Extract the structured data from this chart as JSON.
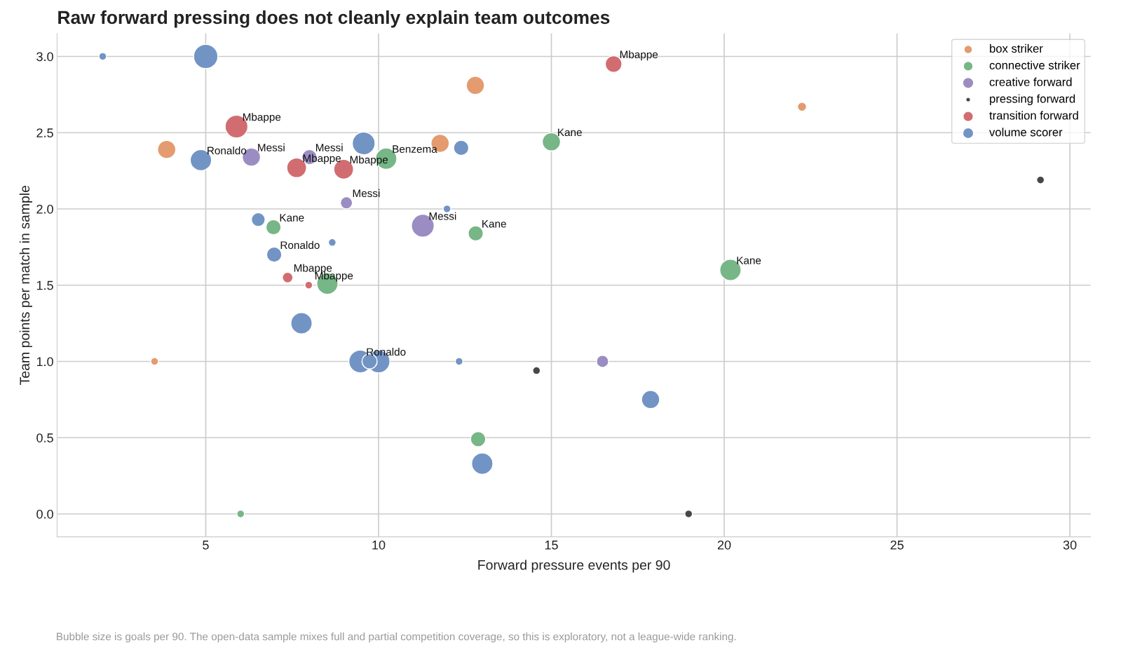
{
  "chart_data": {
    "type": "bubble",
    "title": "Raw forward pressing does not cleanly explain team outcomes",
    "xlabel": "Forward pressure events per 90",
    "ylabel": "Team points per match in sample",
    "xlim": [
      0.7,
      30.6
    ],
    "ylim": [
      -0.15,
      3.15
    ],
    "xticks": [
      5,
      10,
      15,
      20,
      25,
      30
    ],
    "yticks": [
      {
        "value": 0,
        "label": "0.0"
      },
      {
        "value": 0.5,
        "label": "0.5"
      },
      {
        "value": 1,
        "label": "1.0"
      },
      {
        "value": 1.5,
        "label": "1.5"
      },
      {
        "value": 2,
        "label": "2.0"
      },
      {
        "value": 2.5,
        "label": "2.5"
      },
      {
        "value": 3,
        "label": "3.0"
      }
    ],
    "grid": true,
    "legend": "top right",
    "series": [
      {
        "name": "box striker",
        "color": "#e39b6f",
        "x": [
          3.87,
          3.52,
          12.8,
          11.78,
          22.25
        ],
        "values": [
          2.39,
          1.0,
          2.81,
          2.43,
          2.67
        ],
        "sizes": [
          0.56,
          0.1,
          0.56,
          0.56,
          0.14
        ]
      },
      {
        "name": "connective striker",
        "color": "#77b686",
        "x": [
          10.22,
          15.0,
          6.96,
          12.81,
          20.18,
          8.52,
          12.88,
          6.01
        ],
        "values": [
          2.33,
          2.44,
          1.88,
          1.84,
          1.6,
          1.51,
          0.49,
          0.0
        ],
        "sizes": [
          0.77,
          0.56,
          0.39,
          0.39,
          0.77,
          0.77,
          0.39,
          0.1
        ]
      },
      {
        "name": "creative forward",
        "color": "#9b8dc3",
        "x": [
          6.32,
          8.0,
          9.07,
          11.28,
          16.48
        ],
        "values": [
          2.34,
          2.34,
          2.04,
          1.89,
          1.0
        ],
        "sizes": [
          0.56,
          0.39,
          0.25,
          0.88,
          0.25
        ]
      },
      {
        "name": "pressing forward",
        "color": "#474747",
        "x": [
          14.57,
          18.97,
          29.15
        ],
        "values": [
          0.94,
          0.0,
          2.19
        ],
        "sizes": [
          0.1,
          0.1,
          0.1
        ]
      },
      {
        "name": "transition forward",
        "color": "#d16d71",
        "x": [
          5.89,
          16.8,
          7.63,
          8.99,
          7.37,
          7.98
        ],
        "values": [
          2.54,
          2.95,
          2.27,
          2.26,
          1.55,
          1.5
        ],
        "sizes": [
          0.88,
          0.47,
          0.66,
          0.66,
          0.19,
          0.1
        ]
      },
      {
        "name": "volume scorer",
        "color": "#7194c4",
        "x": [
          2.02,
          5.0,
          4.86,
          9.57,
          12.39,
          11.98,
          6.52,
          8.66,
          6.98,
          7.77,
          9.47,
          10.0,
          9.74,
          12.33,
          17.87,
          13.0
        ],
        "values": [
          3.0,
          3.0,
          2.32,
          2.43,
          2.4,
          2.0,
          1.93,
          1.78,
          1.7,
          1.25,
          1.0,
          1.0,
          1.0,
          1.0,
          0.75,
          0.33
        ],
        "sizes": [
          0.1,
          1,
          0.77,
          0.88,
          0.39,
          0.1,
          0.32,
          0.1,
          0.39,
          0.77,
          0.88,
          0.88,
          0.39,
          0.1,
          0.56,
          0.77
        ]
      }
    ],
    "annotations": [
      {
        "text": "Benzema",
        "x": 10.22,
        "y": 2.33
      },
      {
        "text": "Kane",
        "x": 15.0,
        "y": 2.44
      },
      {
        "text": "Kane",
        "x": 6.96,
        "y": 1.88
      },
      {
        "text": "Kane",
        "x": 12.81,
        "y": 1.84
      },
      {
        "text": "Kane",
        "x": 20.18,
        "y": 1.6
      },
      {
        "text": "Messi",
        "x": 6.32,
        "y": 2.34
      },
      {
        "text": "Messi",
        "x": 8.0,
        "y": 2.34
      },
      {
        "text": "Messi",
        "x": 9.07,
        "y": 2.04
      },
      {
        "text": "Messi",
        "x": 11.28,
        "y": 1.89
      },
      {
        "text": "Mbappe",
        "x": 5.89,
        "y": 2.54
      },
      {
        "text": "Mbappe",
        "x": 16.8,
        "y": 2.95
      },
      {
        "text": "Mbappe",
        "x": 7.63,
        "y": 2.27
      },
      {
        "text": "Mbappe",
        "x": 8.99,
        "y": 2.26
      },
      {
        "text": "Mbappe",
        "x": 7.37,
        "y": 1.55
      },
      {
        "text": "Mbappe",
        "x": 7.98,
        "y": 1.5
      },
      {
        "text": "Ronaldo",
        "x": 4.86,
        "y": 2.32
      },
      {
        "text": "Ronaldo",
        "x": 6.98,
        "y": 1.7
      },
      {
        "text": "Ronaldo",
        "x": 9.47,
        "y": 1.0
      },
      "Bubble size is goals per 90. The open-data sample mixes full and partial competition coverage, so this is exploratory, not a league-wide ranking."
    ]
  }
}
